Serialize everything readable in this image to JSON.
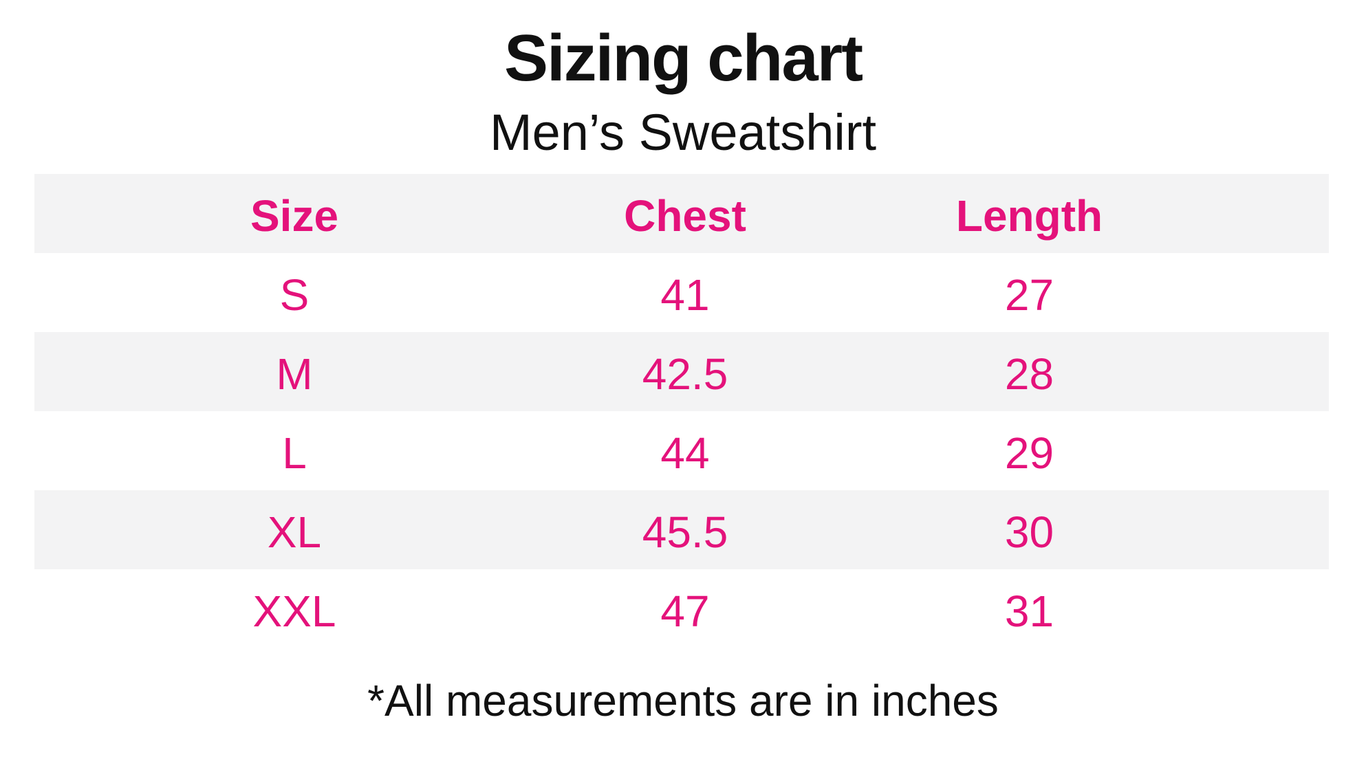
{
  "page": {
    "title": "Sizing chart",
    "subtitle": "Men’s Sweatshirt",
    "footnote": "*All measurements are in inches"
  },
  "colors": {
    "accent_pink": "#E4127B",
    "stripe_gray": "#F3F3F4",
    "text_black": "#111111"
  },
  "table": {
    "headers": [
      "Size",
      "Chest",
      "Length"
    ],
    "rows": [
      {
        "size": "S",
        "chest": "41",
        "length": "27"
      },
      {
        "size": "M",
        "chest": "42.5",
        "length": "28"
      },
      {
        "size": "L",
        "chest": "44",
        "length": "29"
      },
      {
        "size": "XL",
        "chest": "45.5",
        "length": "30"
      },
      {
        "size": "XXL",
        "chest": "47",
        "length": "31"
      }
    ]
  },
  "chart_data": {
    "type": "table",
    "title": "Sizing chart",
    "subtitle": "Men’s Sweatshirt",
    "columns": [
      "Size",
      "Chest",
      "Length"
    ],
    "rows": [
      [
        "S",
        41,
        27
      ],
      [
        "M",
        42.5,
        28
      ],
      [
        "L",
        44,
        29
      ],
      [
        "XL",
        45.5,
        30
      ],
      [
        "XXL",
        47,
        31
      ]
    ],
    "units": "inches",
    "footnote": "*All measurements are in inches",
    "layout": {
      "striped_rows": true,
      "header_color": "pink",
      "grid": "off"
    }
  }
}
